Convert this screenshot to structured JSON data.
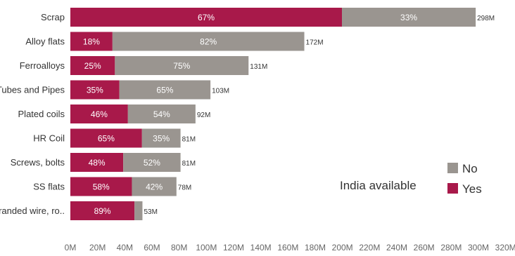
{
  "chart_data": {
    "type": "bar",
    "orientation": "horizontal",
    "stacked": true,
    "categories": [
      "Scrap",
      "Alloy flats",
      "Ferroalloys",
      "Tubes and Pipes",
      "Plated coils",
      "HR Coil",
      "Screws, bolts",
      "SS flats",
      "Stranded wire, ro.."
    ],
    "totals": [
      298,
      172,
      131,
      103,
      92,
      81,
      81,
      78,
      53
    ],
    "total_labels": [
      "298M",
      "172M",
      "131M",
      "103M",
      "92M",
      "81M",
      "81M",
      "78M",
      "53M"
    ],
    "series": [
      {
        "name": "Yes",
        "color": "#A8194A",
        "percent": [
          67,
          18,
          25,
          35,
          46,
          65,
          48,
          58,
          89
        ],
        "percent_labels": [
          "67%",
          "18%",
          "25%",
          "35%",
          "46%",
          "65%",
          "48%",
          "58%",
          "89%"
        ]
      },
      {
        "name": "No",
        "color": "#9A9590",
        "percent": [
          33,
          82,
          75,
          65,
          54,
          35,
          52,
          42,
          11
        ],
        "percent_labels": [
          "33%",
          "82%",
          "75%",
          "65%",
          "54%",
          "35%",
          "52%",
          "42%",
          ""
        ]
      }
    ],
    "x_ticks": [
      0,
      20,
      40,
      60,
      80,
      100,
      120,
      140,
      160,
      180,
      200,
      220,
      240,
      260,
      280,
      300,
      320
    ],
    "x_tick_labels": [
      "0M",
      "20M",
      "40M",
      "60M",
      "80M",
      "100M",
      "120M",
      "140M",
      "160M",
      "180M",
      "200M",
      "220M",
      "240M",
      "260M",
      "280M",
      "300M",
      "320M"
    ],
    "xlim": [
      0,
      320
    ],
    "grid": false,
    "legend": {
      "title": "India available",
      "placement": "bottom-right",
      "items": [
        {
          "label": "No",
          "color": "#9A9590"
        },
        {
          "label": "Yes",
          "color": "#A8194A"
        }
      ]
    }
  }
}
